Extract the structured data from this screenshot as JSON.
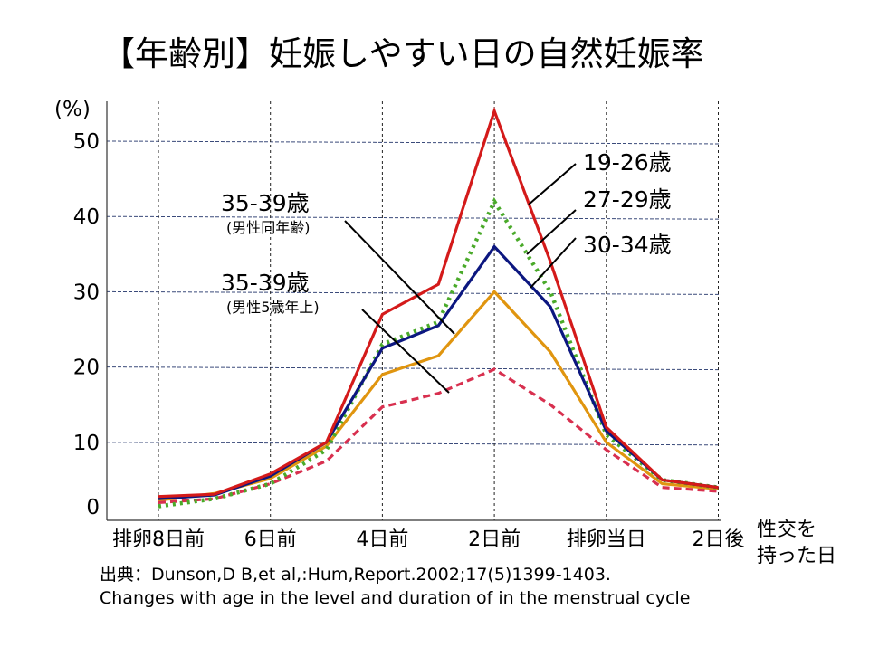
{
  "chart_data": {
    "type": "line",
    "title": "【年齢別】妊娠しやすい日の自然妊娠率",
    "ylabel": "(%)",
    "xlabel": "性交を 持った日",
    "ylim": [
      0,
      50
    ],
    "yticks": [
      0,
      10,
      20,
      30,
      40,
      50
    ],
    "x_tick_labels": [
      "排卵8日前",
      "6日前",
      "4日前",
      "2日前",
      "排卵当日",
      "2日後"
    ],
    "gridlines": true,
    "x": [
      -8,
      -7,
      -6,
      -5,
      -4,
      -3,
      -2,
      -1,
      0,
      1,
      2
    ],
    "series": [
      {
        "name": "19-26歳",
        "color": "#d41a1a",
        "style": "solid",
        "values": [
          2.8,
          3.1,
          5.8,
          10,
          27,
          31,
          54,
          34,
          12,
          5,
          4
        ]
      },
      {
        "name": "27-29歳",
        "color": "#4aaa2a",
        "style": "dotted",
        "values": [
          1.5,
          2.5,
          4.5,
          9,
          23,
          26,
          42,
          30,
          11,
          5,
          4
        ]
      },
      {
        "name": "30-34歳",
        "color": "#0c1780",
        "style": "solid",
        "values": [
          2.5,
          3.0,
          5.5,
          10,
          22.5,
          25.5,
          36,
          28,
          11.5,
          5,
          4
        ]
      },
      {
        "name": "35-39歳",
        "sublabel": "(男性同年齢)",
        "color": "#e0950f",
        "style": "solid",
        "values": [
          2.3,
          3.2,
          5.2,
          9.5,
          19,
          21.5,
          30,
          22,
          10,
          4.5,
          3.8
        ]
      },
      {
        "name": "35-39歳",
        "sublabel": "(男性5歳年上)",
        "color": "#d8304f",
        "style": "dashed",
        "values": [
          2.0,
          2.5,
          4.5,
          7.5,
          14.7,
          16.5,
          19.7,
          15,
          9,
          4,
          3.5
        ]
      }
    ]
  },
  "source": {
    "line1": "出典：Dunson,D B,et al,:Hum,Report.2002;17(5)1399-1403.",
    "line2": "Changes with age in the level and duration of in the menstrual cycle"
  }
}
